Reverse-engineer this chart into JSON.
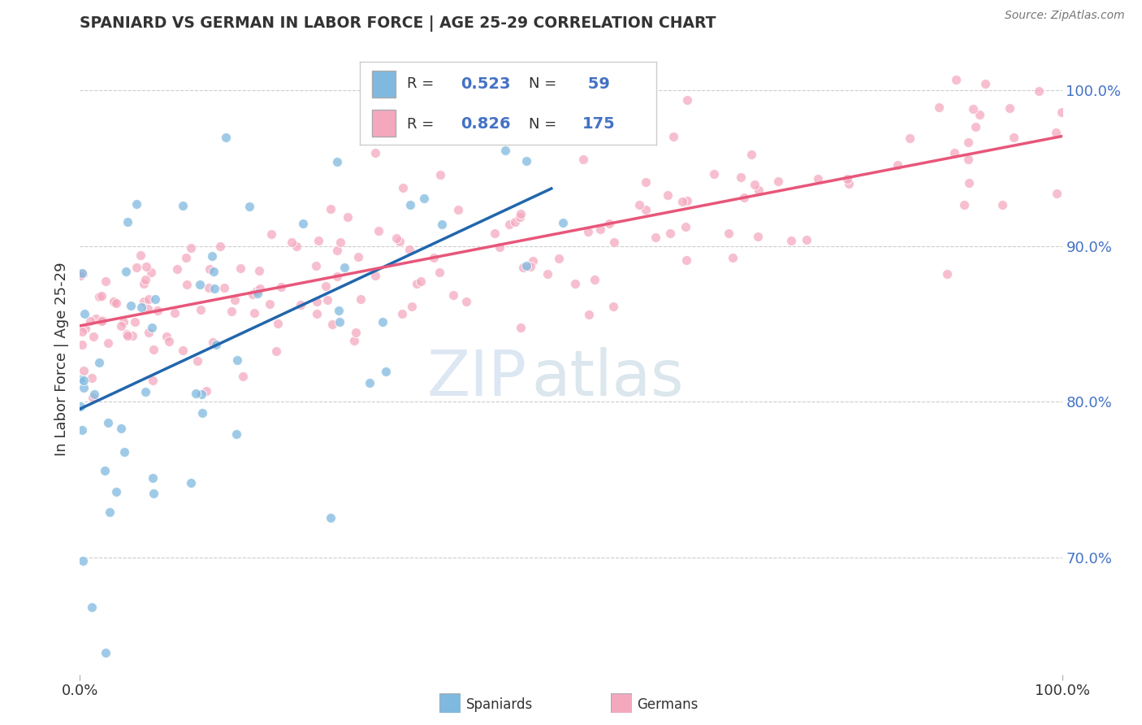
{
  "title": "SPANIARD VS GERMAN IN LABOR FORCE | AGE 25-29 CORRELATION CHART",
  "source_text": "Source: ZipAtlas.com",
  "ylabel": "In Labor Force | Age 25-29",
  "xlim": [
    0.0,
    1.0
  ],
  "ylim": [
    0.625,
    1.03
  ],
  "spaniard_color": "#7fb9e0",
  "german_color": "#f4a8be",
  "spaniard_line_color": "#2166ac",
  "german_line_color": "#e8567a",
  "R_spaniard": 0.523,
  "N_spaniard": 59,
  "R_german": 0.826,
  "N_german": 175,
  "watermark_zip": "ZIP",
  "watermark_atlas": "atlas",
  "right_ytick_labels": [
    "70.0%",
    "80.0%",
    "90.0%",
    "100.0%"
  ],
  "right_ytick_values": [
    0.7,
    0.8,
    0.9,
    1.0
  ],
  "legend_label_spaniard": "Spaniards",
  "legend_label_german": "Germans",
  "background_color": "#ffffff",
  "grid_color": "#cccccc",
  "title_color": "#333333",
  "ylabel_color": "#333333",
  "ytick_color": "#4472C4",
  "xtick_color": "#333333"
}
